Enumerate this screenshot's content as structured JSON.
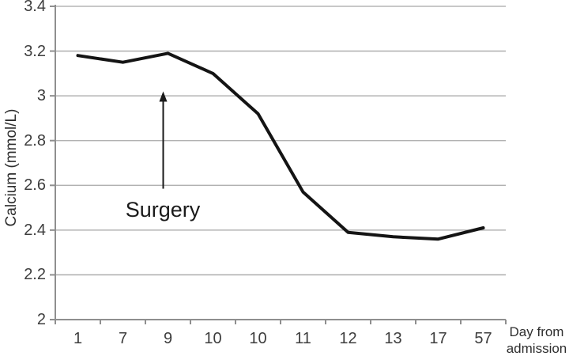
{
  "chart_data": {
    "type": "line",
    "title": "",
    "categories": [
      "1",
      "7",
      "9",
      "10",
      "10",
      "11",
      "12",
      "13",
      "17",
      "57"
    ],
    "values": [
      3.18,
      3.15,
      3.19,
      3.1,
      2.92,
      2.57,
      2.39,
      2.37,
      2.36,
      2.41
    ],
    "series_name": "Calcium",
    "xlabel": "Day from admission",
    "xlabel_lines": [
      "Day from",
      "admission"
    ],
    "ylabel": "Calcium (mmol/L)",
    "ylim": [
      2,
      3.4
    ],
    "ytick_step": 0.2,
    "yticks": [
      "3.4",
      "3.2",
      "3",
      "2.8",
      "2.6",
      "2.4",
      "2.2",
      "2"
    ],
    "grid": "horizontal-only",
    "legend": "none",
    "annotation": {
      "label": "Surgery",
      "category_index": 2,
      "arrow_from_value": 2.585,
      "arrow_to_value": 3.02
    },
    "colors": {
      "line": "#141414",
      "grid": "#a6a6a6",
      "axis": "#8f8f8f",
      "tick_text": "#3d3d3d",
      "annotation_text": "#1a1a1a",
      "background": "#ffffff"
    }
  }
}
